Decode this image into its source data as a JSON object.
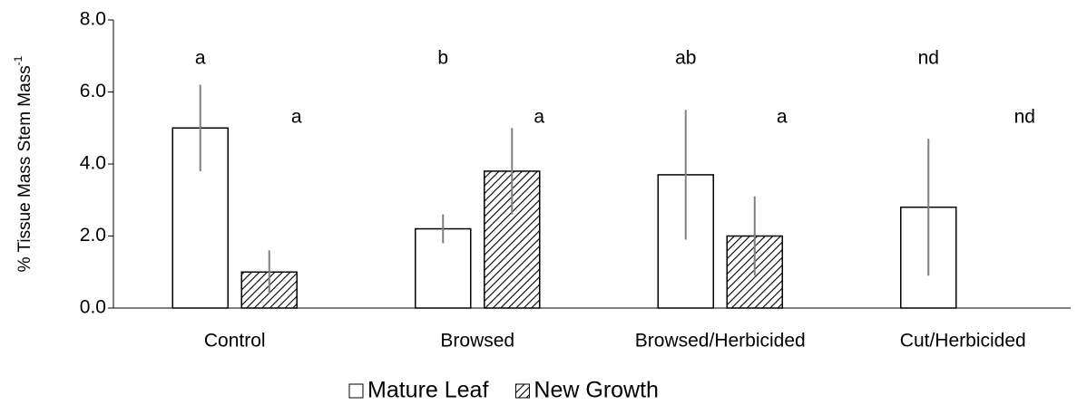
{
  "chart_data": {
    "type": "bar",
    "y_label": "% Tissue Mass Stem Mass",
    "y_label_sup": "-1",
    "categories": [
      "Control",
      "Browsed",
      "Browsed/Herbicided",
      "Cut/Herbicided"
    ],
    "series": [
      {
        "name": "Mature Leaf",
        "color": "#ffffff",
        "pattern": "none",
        "values": [
          5.0,
          2.2,
          3.7,
          2.8
        ],
        "errors": [
          1.2,
          0.4,
          1.8,
          1.9
        ],
        "letters": [
          "a",
          "b",
          "ab",
          "nd"
        ]
      },
      {
        "name": "New Growth",
        "color": "#ffffff",
        "pattern": "hatch",
        "values": [
          1.0,
          3.8,
          2.0,
          null
        ],
        "errors": [
          0.6,
          1.2,
          1.1,
          null
        ],
        "letters": [
          "a",
          "a",
          "a",
          "nd"
        ]
      }
    ],
    "ylim": [
      0,
      8
    ],
    "yticks": [
      {
        "value": 0,
        "label": "0.0"
      },
      {
        "value": 2,
        "label": "2.0"
      },
      {
        "value": 4,
        "label": "4.0"
      },
      {
        "value": 6,
        "label": "6.0"
      },
      {
        "value": 8,
        "label": "8.0"
      }
    ],
    "grid": false,
    "legend": "bottom"
  }
}
